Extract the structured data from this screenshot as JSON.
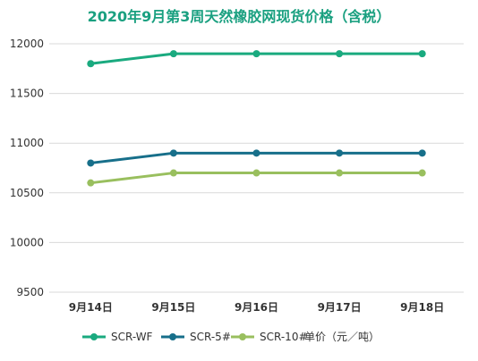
{
  "chart_data": {
    "type": "line",
    "title": "2020年9月第3周天然橡胶网现货价格（含税）",
    "categories": [
      "9月14日",
      "9月15日",
      "9月16日",
      "9月17日",
      "9月18日"
    ],
    "yticks": [
      "9500",
      "10000",
      "10500",
      "11000",
      "11500",
      "12000"
    ],
    "ylim": [
      9500,
      12000
    ],
    "grid": true,
    "legend_position": "bottom",
    "unit_label": "单价（元／吨）",
    "series": [
      {
        "name": "SCR-WF",
        "color": "#1aaa7f",
        "values": [
          11800,
          11900,
          11900,
          11900,
          11900
        ]
      },
      {
        "name": "SCR-5#",
        "color": "#176f8a",
        "values": [
          10800,
          10900,
          10900,
          10900,
          10900
        ]
      },
      {
        "name": "SCR-10#",
        "color": "#99bf5e",
        "values": [
          10600,
          10700,
          10700,
          10700,
          10700
        ]
      }
    ]
  }
}
